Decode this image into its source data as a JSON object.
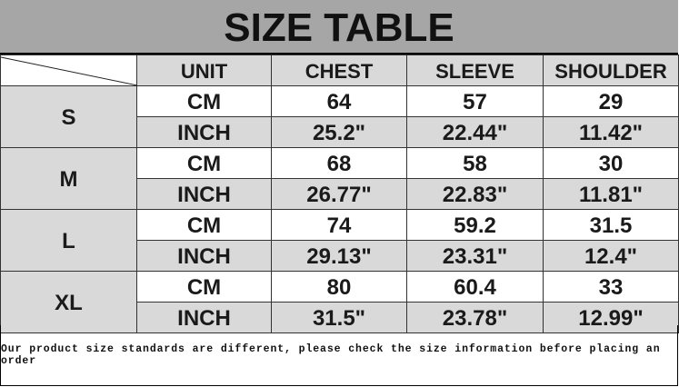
{
  "title": "SIZE TABLE",
  "columns": [
    "UNIT",
    "CHEST",
    "SLEEVE",
    "SHOULDER"
  ],
  "sizes": [
    {
      "size": "S",
      "cm": [
        "CM",
        "64",
        "57",
        "29"
      ],
      "inch": [
        "INCH",
        "25.2\"",
        "22.44\"",
        "11.42\""
      ]
    },
    {
      "size": "M",
      "cm": [
        "CM",
        "68",
        "58",
        "30"
      ],
      "inch": [
        "INCH",
        "26.77\"",
        "22.83\"",
        "11.81\""
      ]
    },
    {
      "size": "L",
      "cm": [
        "CM",
        "74",
        "59.2",
        "31.5"
      ],
      "inch": [
        "INCH",
        "29.13\"",
        "23.31\"",
        "12.4\""
      ]
    },
    {
      "size": "XL",
      "cm": [
        "CM",
        "80",
        "60.4",
        "33"
      ],
      "inch": [
        "INCH",
        "31.5\"",
        "23.78\"",
        "12.99\""
      ]
    }
  ],
  "footer": "Our product size standards are different, please check the size information before placing an order",
  "colors": {
    "title_bg": "#a6a6a6",
    "cell_gray": "#d9d9d9"
  }
}
